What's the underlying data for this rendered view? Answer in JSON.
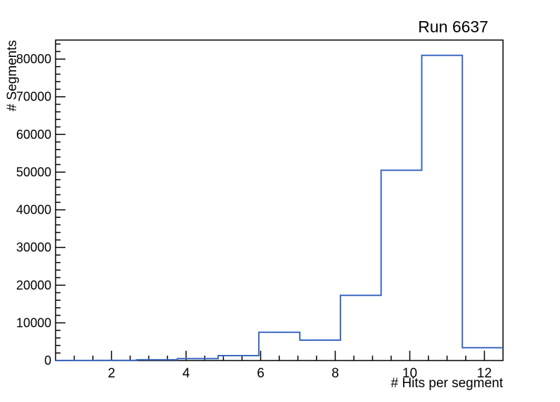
{
  "chart_data": {
    "type": "histogram",
    "title": "Run 6637",
    "xlabel": "# Hits per segment",
    "ylabel": "# Segments",
    "xlim": [
      0.5,
      12.5
    ],
    "ylim": [
      0,
      85050
    ],
    "n_bins": 11,
    "bin_edges": [
      0.5,
      1.59,
      2.68,
      3.77,
      4.86,
      5.95,
      7.05,
      8.14,
      9.23,
      10.32,
      11.41,
      12.5
    ],
    "counts": [
      20,
      60,
      200,
      500,
      1300,
      7500,
      5400,
      17300,
      50500,
      81000,
      3400
    ],
    "x_major_ticks": [
      2,
      4,
      6,
      8,
      10,
      12
    ],
    "x_tick_labels": [
      "2",
      "4",
      "6",
      "8",
      "10",
      "12"
    ],
    "x_minor_step": 0.5,
    "y_major_step": 10000,
    "y_minor_step": 2000,
    "y_tick_labels": [
      "0",
      "10000",
      "20000",
      "30000",
      "40000",
      "50000",
      "60000",
      "70000",
      "80000"
    ],
    "grid": false,
    "legend": null,
    "line_color": "#3a67c0",
    "axis_color": "#000000",
    "background_color": "#ffffff"
  }
}
